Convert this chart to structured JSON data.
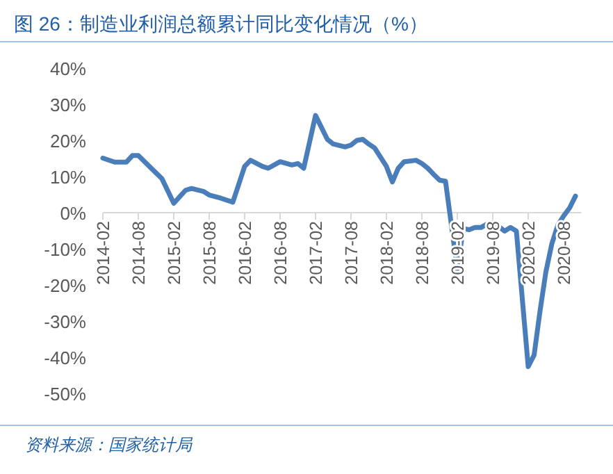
{
  "chart_data": {
    "type": "line",
    "title": "图 26：制造业利润总额累计同比变化情况（%）",
    "annotations": [
      "资料来源：国家统计局"
    ],
    "x": [
      "2014-02",
      "2014-04",
      "2014-06",
      "2014-07",
      "2014-08",
      "2014-10",
      "2014-12",
      "2015-02",
      "2015-04",
      "2015-05",
      "2015-07",
      "2015-08",
      "2015-10",
      "2015-12",
      "2016-02",
      "2016-03",
      "2016-05",
      "2016-06",
      "2016-08",
      "2016-10",
      "2016-11",
      "2016-12",
      "2017-02",
      "2017-04",
      "2017-05",
      "2017-07",
      "2017-08",
      "2017-09",
      "2017-10",
      "2017-11",
      "2017-12",
      "2018-02",
      "2018-03",
      "2018-04",
      "2018-05",
      "2018-07",
      "2018-08",
      "2018-09",
      "2018-10",
      "2018-11",
      "2018-12",
      "2019-02",
      "2019-03",
      "2019-04",
      "2019-05",
      "2019-06",
      "2019-07",
      "2019-08",
      "2019-09",
      "2019-10",
      "2019-11",
      "2019-12",
      "2020-02",
      "2020-03",
      "2020-04",
      "2020-05",
      "2020-06",
      "2020-07",
      "2020-08",
      "2020-09",
      "2020-10"
    ],
    "series": [
      {
        "color": "#4a7ebb",
        "values": [
          15.1,
          14,
          14,
          15.8,
          15.8,
          12.6,
          9.4,
          2.6,
          6.2,
          6.7,
          5.9,
          4.9,
          4,
          2.9,
          12.8,
          14.5,
          12.8,
          12.3,
          14.1,
          13.2,
          13.6,
          12.3,
          26.9,
          20.3,
          19,
          18.2,
          18.7,
          20,
          20.3,
          19,
          17.9,
          12.8,
          8.5,
          12.3,
          14.1,
          14.5,
          13.6,
          12.3,
          10.6,
          9,
          8.7,
          -15.6,
          -4.4,
          -4.7,
          -4.1,
          -4.1,
          -3.2,
          -2.8,
          -3.8,
          -5.1,
          -4.1,
          -5.1,
          -42.6,
          -39.4,
          -27.2,
          -16.3,
          -8.6,
          -3.5,
          -0.9,
          1.3,
          4.6
        ]
      }
    ],
    "xlim": [
      "2014-02",
      "2020-11"
    ],
    "xticks": [
      "2014-02",
      "2014-08",
      "2015-02",
      "2015-08",
      "2016-02",
      "2016-08",
      "2017-02",
      "2017-08",
      "2018-02",
      "2018-08",
      "2019-02",
      "2019-08",
      "2020-02",
      "2020-08"
    ],
    "ylim": [
      -50,
      40
    ],
    "yticks": [
      {
        "value": 40,
        "label": "40%"
      },
      {
        "value": 30,
        "label": "30%"
      },
      {
        "value": 20,
        "label": "20%"
      },
      {
        "value": 10,
        "label": "10%"
      },
      {
        "value": 0,
        "label": "0%"
      },
      {
        "value": -10,
        "label": "-10%"
      },
      {
        "value": -20,
        "label": "-20%"
      },
      {
        "value": -30,
        "label": "-30%"
      },
      {
        "value": -40,
        "label": "-40%"
      },
      {
        "value": -50,
        "label": "-50%"
      }
    ],
    "grid": false,
    "marker": "none",
    "line_style": "solid"
  }
}
